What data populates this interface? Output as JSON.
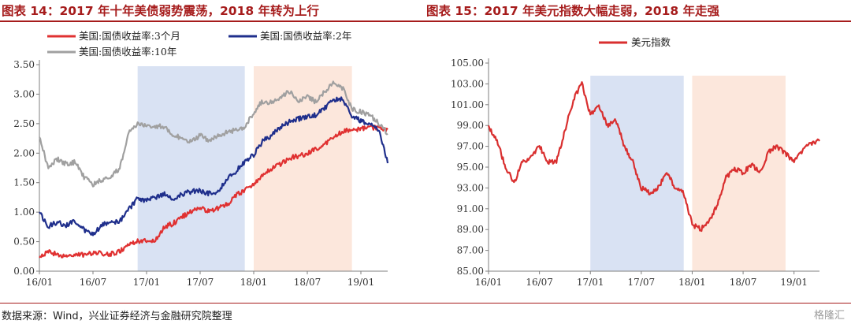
{
  "header": {
    "left_title": "图表 14：2017 年十年美债弱势震荡，2018 年转为上行",
    "right_title": "图表 15：2017 年美元指数大幅走弱，2018 年走强"
  },
  "footer": {
    "source": "数据来源：Wind，兴业证券经济与金融研究院整理",
    "watermark": "格隆汇"
  },
  "colors": {
    "title": "#a61c1c",
    "series_3m": "#e03131",
    "series_2y": "#1f2f8c",
    "series_10y": "#a0a0a0",
    "dxy": "#d92f2f",
    "band_blue": "#d9e2f3",
    "band_peach": "#fce7dc"
  },
  "chart_data": [
    {
      "type": "line",
      "title": "",
      "xlabel": "",
      "ylabel": "",
      "xlim": [
        "2016-01",
        "2019-04"
      ],
      "ylim": [
        0,
        3.5
      ],
      "yticks": [
        "0.00",
        "0.50",
        "1.00",
        "1.50",
        "2.00",
        "2.50",
        "3.00",
        "3.50"
      ],
      "xticks": [
        {
          "date": "2016-01",
          "label": "16/01"
        },
        {
          "date": "2016-07",
          "label": "16/07"
        },
        {
          "date": "2017-01",
          "label": "17/01"
        },
        {
          "date": "2017-07",
          "label": "17/07"
        },
        {
          "date": "2018-01",
          "label": "18/01"
        },
        {
          "date": "2018-07",
          "label": "18/07"
        },
        {
          "date": "2019-01",
          "label": "19/01"
        }
      ],
      "shaded_periods": [
        {
          "from": "2016-12",
          "to": "2017-12",
          "color": "blue"
        },
        {
          "from": "2018-01",
          "to": "2018-12",
          "color": "peach"
        }
      ],
      "grid": false,
      "legend_position": "top",
      "series": [
        {
          "name": "美国:国债收益率:3个月",
          "color_key": "series_3m",
          "x": [
            "2016-01",
            "2016-02",
            "2016-03",
            "2016-04",
            "2016-05",
            "2016-06",
            "2016-07",
            "2016-08",
            "2016-09",
            "2016-10",
            "2016-11",
            "2016-12",
            "2017-01",
            "2017-02",
            "2017-03",
            "2017-04",
            "2017-05",
            "2017-06",
            "2017-07",
            "2017-08",
            "2017-09",
            "2017-10",
            "2017-11",
            "2017-12",
            "2018-01",
            "2018-02",
            "2018-03",
            "2018-04",
            "2018-05",
            "2018-06",
            "2018-07",
            "2018-08",
            "2018-09",
            "2018-10",
            "2018-11",
            "2018-12",
            "2019-01",
            "2019-02",
            "2019-03",
            "2019-04"
          ],
          "values": [
            0.23,
            0.32,
            0.29,
            0.23,
            0.3,
            0.27,
            0.31,
            0.3,
            0.29,
            0.33,
            0.45,
            0.51,
            0.52,
            0.53,
            0.75,
            0.81,
            0.92,
            1.02,
            1.07,
            1.02,
            1.06,
            1.13,
            1.28,
            1.38,
            1.46,
            1.65,
            1.73,
            1.82,
            1.92,
            1.95,
            2.0,
            2.08,
            2.16,
            2.28,
            2.37,
            2.39,
            2.42,
            2.44,
            2.43,
            2.4
          ]
        },
        {
          "name": "美国:国债收益率:2年",
          "color_key": "series_2y",
          "x": [
            "2016-01",
            "2016-02",
            "2016-03",
            "2016-04",
            "2016-05",
            "2016-06",
            "2016-07",
            "2016-08",
            "2016-09",
            "2016-10",
            "2016-11",
            "2016-12",
            "2017-01",
            "2017-02",
            "2017-03",
            "2017-04",
            "2017-05",
            "2017-06",
            "2017-07",
            "2017-08",
            "2017-09",
            "2017-10",
            "2017-11",
            "2017-12",
            "2018-01",
            "2018-02",
            "2018-03",
            "2018-04",
            "2018-05",
            "2018-06",
            "2018-07",
            "2018-08",
            "2018-09",
            "2018-10",
            "2018-11",
            "2018-12",
            "2019-01",
            "2019-02",
            "2019-03",
            "2019-04"
          ],
          "values": [
            1.0,
            0.76,
            0.83,
            0.78,
            0.86,
            0.7,
            0.62,
            0.78,
            0.83,
            0.85,
            1.05,
            1.23,
            1.2,
            1.24,
            1.3,
            1.22,
            1.3,
            1.35,
            1.36,
            1.32,
            1.35,
            1.56,
            1.69,
            1.85,
            1.97,
            2.2,
            2.3,
            2.45,
            2.53,
            2.58,
            2.63,
            2.65,
            2.78,
            2.9,
            2.91,
            2.63,
            2.55,
            2.5,
            2.4,
            1.83
          ]
        },
        {
          "name": "美国:国债收益率:10年",
          "color_key": "series_10y",
          "x": [
            "2016-01",
            "2016-02",
            "2016-03",
            "2016-04",
            "2016-05",
            "2016-06",
            "2016-07",
            "2016-08",
            "2016-09",
            "2016-10",
            "2016-11",
            "2016-12",
            "2017-01",
            "2017-02",
            "2017-03",
            "2017-04",
            "2017-05",
            "2017-06",
            "2017-07",
            "2017-08",
            "2017-09",
            "2017-10",
            "2017-11",
            "2017-12",
            "2018-01",
            "2018-02",
            "2018-03",
            "2018-04",
            "2018-05",
            "2018-06",
            "2018-07",
            "2018-08",
            "2018-09",
            "2018-10",
            "2018-11",
            "2018-12",
            "2019-01",
            "2019-02",
            "2019-03",
            "2019-04"
          ],
          "values": [
            2.27,
            1.75,
            1.9,
            1.82,
            1.85,
            1.6,
            1.46,
            1.55,
            1.6,
            1.75,
            2.35,
            2.5,
            2.45,
            2.45,
            2.45,
            2.3,
            2.25,
            2.2,
            2.3,
            2.2,
            2.3,
            2.35,
            2.4,
            2.42,
            2.7,
            2.88,
            2.85,
            2.95,
            3.05,
            2.9,
            2.95,
            2.87,
            3.05,
            3.2,
            3.1,
            2.75,
            2.7,
            2.65,
            2.5,
            2.33
          ]
        }
      ]
    },
    {
      "type": "line",
      "title": "",
      "xlabel": "",
      "ylabel": "",
      "xlim": [
        "2016-01",
        "2019-04"
      ],
      "ylim": [
        85,
        105
      ],
      "yticks": [
        "85.00",
        "87.00",
        "89.00",
        "91.00",
        "93.00",
        "95.00",
        "97.00",
        "99.00",
        "101.00",
        "103.00",
        "105.00"
      ],
      "xticks": [
        {
          "date": "2016-01",
          "label": "16/01"
        },
        {
          "date": "2016-07",
          "label": "16/07"
        },
        {
          "date": "2017-01",
          "label": "17/01"
        },
        {
          "date": "2017-07",
          "label": "17/07"
        },
        {
          "date": "2018-01",
          "label": "18/01"
        },
        {
          "date": "2018-07",
          "label": "18/07"
        },
        {
          "date": "2019-01",
          "label": "19/01"
        }
      ],
      "shaded_periods": [
        {
          "from": "2017-01",
          "to": "2017-12",
          "color": "blue"
        },
        {
          "from": "2018-01",
          "to": "2018-12",
          "color": "peach"
        }
      ],
      "grid": false,
      "legend_position": "top",
      "series": [
        {
          "name": "美元指数",
          "color_key": "dxy",
          "x": [
            "2016-01",
            "2016-02",
            "2016-03",
            "2016-04",
            "2016-05",
            "2016-06",
            "2016-07",
            "2016-08",
            "2016-09",
            "2016-10",
            "2016-11",
            "2016-12",
            "2017-01",
            "2017-02",
            "2017-03",
            "2017-04",
            "2017-05",
            "2017-06",
            "2017-07",
            "2017-08",
            "2017-09",
            "2017-10",
            "2017-11",
            "2017-12",
            "2018-01",
            "2018-02",
            "2018-03",
            "2018-04",
            "2018-05",
            "2018-06",
            "2018-07",
            "2018-08",
            "2018-09",
            "2018-10",
            "2018-11",
            "2018-12",
            "2019-01",
            "2019-02",
            "2019-03",
            "2019-04"
          ],
          "values": [
            99.0,
            97.5,
            95.0,
            93.5,
            95.5,
            96.0,
            97.0,
            95.5,
            95.5,
            98.5,
            101.5,
            103.0,
            100.0,
            101.0,
            99.0,
            99.5,
            97.0,
            95.5,
            93.0,
            92.5,
            93.0,
            94.5,
            93.0,
            92.5,
            89.5,
            89.0,
            89.8,
            91.5,
            94.0,
            94.8,
            94.5,
            95.2,
            94.5,
            96.5,
            97.0,
            96.3,
            95.6,
            96.5,
            97.3,
            97.5
          ]
        }
      ]
    }
  ]
}
